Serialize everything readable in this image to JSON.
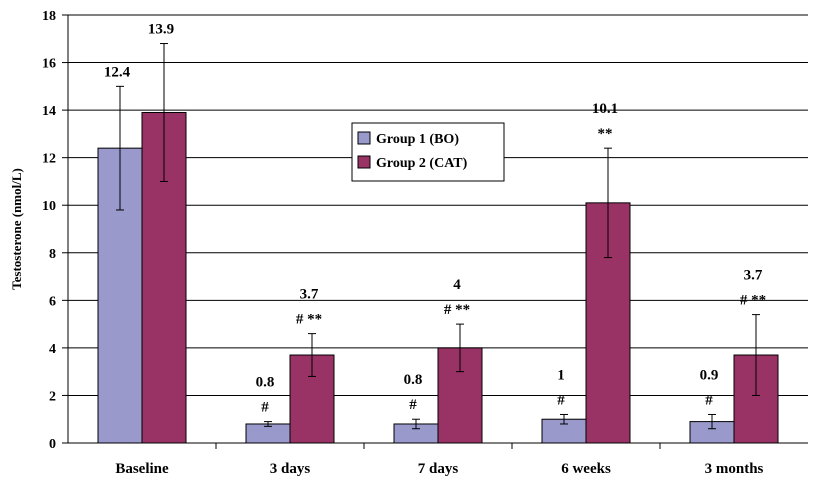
{
  "chart_data": {
    "type": "bar",
    "title": "",
    "xlabel": "",
    "ylabel": "Testosterone (nmol/L)",
    "ylim": [
      0,
      18
    ],
    "yticks": [
      "0",
      "2",
      "4",
      "6",
      "8",
      "10",
      "12",
      "14",
      "16",
      "18"
    ],
    "grid": true,
    "legend_position": "center",
    "categories": [
      "Baseline",
      "3 days",
      "7 days",
      "6 weeks",
      "3 months"
    ],
    "series": [
      {
        "name": "Group 1 (BO)",
        "color": "#9999cc",
        "values": [
          12.4,
          0.8,
          0.8,
          1.0,
          0.9
        ],
        "error": [
          2.6,
          0.1,
          0.2,
          0.2,
          0.3
        ],
        "labels": [
          "12.4",
          "0.8",
          "0.8",
          "1",
          "0.9"
        ],
        "annotations": [
          "",
          "#",
          "#",
          "#",
          "#"
        ]
      },
      {
        "name": "Group 2 (CAT)",
        "color": "#993366",
        "values": [
          13.9,
          3.7,
          4.0,
          10.1,
          3.7
        ],
        "error": [
          2.9,
          0.9,
          1.0,
          2.3,
          1.7
        ],
        "labels": [
          "13.9",
          "3.7",
          "4",
          "10.1",
          "3.7"
        ],
        "annotations": [
          "",
          "# **",
          "# **",
          "**",
          "# **"
        ]
      }
    ]
  }
}
